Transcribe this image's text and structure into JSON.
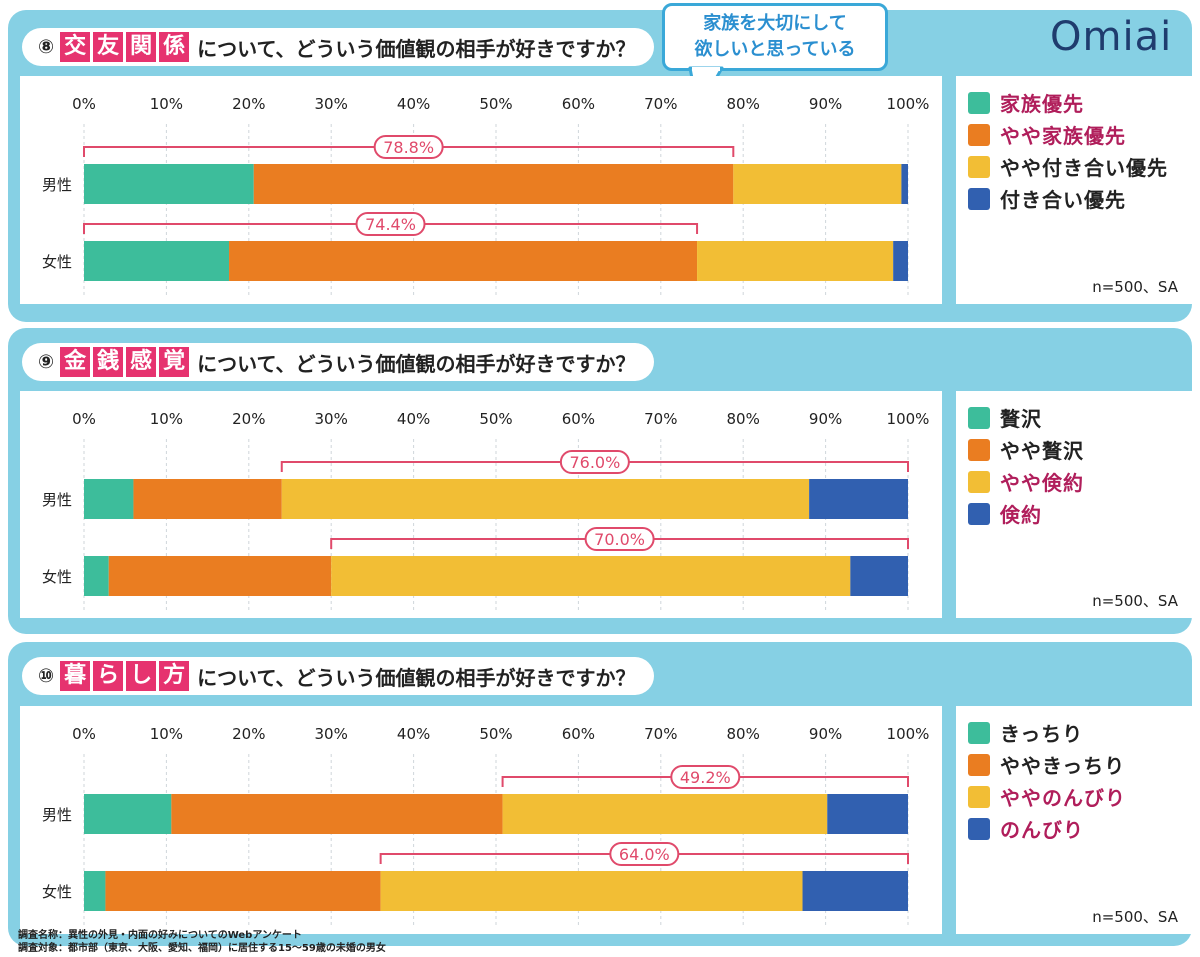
{
  "callout": {
    "line1": "家族を大切にして",
    "line2": "欲しいと思っている"
  },
  "logo": "Omiai",
  "footer": {
    "line1": "調査名称：異性の外見・内面の好みについてのWebアンケート",
    "line2": "調査対象：都市部（東京、大阪、愛知、福岡）に居住する15〜59歳の未婚の男女"
  },
  "colors": {
    "green": "#3dbd9b",
    "orange": "#ea7d21",
    "yellow": "#f2be35",
    "blue": "#3160b0",
    "pink": "#e6336f",
    "bracket": "#e04a6b"
  },
  "sections": [
    {
      "num": "⑧",
      "keyword": [
        "交",
        "友",
        "関",
        "係"
      ],
      "question": "について、どういう価値観の相手が好きですか？",
      "legend": [
        {
          "label": "家族優先",
          "color": "#3dbd9b",
          "text_color": "#b01e5b"
        },
        {
          "label": "やや家族優先",
          "color": "#ea7d21",
          "text_color": "#b01e5b"
        },
        {
          "label": "やや付き合い優先",
          "color": "#f2be35",
          "text_color": "#222222"
        },
        {
          "label": "付き合い優先",
          "color": "#3160b0",
          "text_color": "#222222"
        }
      ],
      "n_label": "n=500、SA",
      "chart_data": {
        "type": "bar",
        "orientation": "horizontal-stacked",
        "categories": [
          "男性",
          "女性"
        ],
        "x_ticks": [
          "0%",
          "10%",
          "20%",
          "30%",
          "40%",
          "50%",
          "60%",
          "70%",
          "80%",
          "90%",
          "100%"
        ],
        "xlim": [
          0,
          100
        ],
        "series": [
          {
            "name": "家族優先",
            "values": [
              20.6,
              17.6
            ]
          },
          {
            "name": "やや家族優先",
            "values": [
              58.2,
              56.8
            ]
          },
          {
            "name": "やや付き合い優先",
            "values": [
              20.4,
              23.8
            ]
          },
          {
            "name": "付き合い優先",
            "values": [
              0.8,
              1.8
            ]
          }
        ],
        "brackets": [
          {
            "row": 0,
            "from": 0,
            "to": 78.8,
            "label": "78.8%"
          },
          {
            "row": 1,
            "from": 0,
            "to": 74.4,
            "label": "74.4%"
          }
        ]
      }
    },
    {
      "num": "⑨",
      "keyword": [
        "金",
        "銭",
        "感",
        "覚"
      ],
      "question": "について、どういう価値観の相手が好きですか？",
      "legend": [
        {
          "label": "贅沢",
          "color": "#3dbd9b",
          "text_color": "#222222"
        },
        {
          "label": "やや贅沢",
          "color": "#ea7d21",
          "text_color": "#222222"
        },
        {
          "label": "やや倹約",
          "color": "#f2be35",
          "text_color": "#b01e5b"
        },
        {
          "label": "倹約",
          "color": "#3160b0",
          "text_color": "#b01e5b"
        }
      ],
      "n_label": "n=500、SA",
      "chart_data": {
        "type": "bar",
        "orientation": "horizontal-stacked",
        "categories": [
          "男性",
          "女性"
        ],
        "x_ticks": [
          "0%",
          "10%",
          "20%",
          "30%",
          "40%",
          "50%",
          "60%",
          "70%",
          "80%",
          "90%",
          "100%"
        ],
        "xlim": [
          0,
          100
        ],
        "series": [
          {
            "name": "贅沢",
            "values": [
              6.0,
              3.0
            ]
          },
          {
            "name": "やや贅沢",
            "values": [
              18.0,
              27.0
            ]
          },
          {
            "name": "やや倹約",
            "values": [
              64.0,
              63.0
            ]
          },
          {
            "name": "倹約",
            "values": [
              12.0,
              7.0
            ]
          }
        ],
        "brackets": [
          {
            "row": 0,
            "from": 24.0,
            "to": 100,
            "label": "76.0%"
          },
          {
            "row": 1,
            "from": 30.0,
            "to": 100,
            "label": "70.0%"
          }
        ]
      }
    },
    {
      "num": "⑩",
      "keyword": [
        "暮",
        "ら",
        "し",
        "方"
      ],
      "question": "について、どういう価値観の相手が好きですか？",
      "legend": [
        {
          "label": "きっちり",
          "color": "#3dbd9b",
          "text_color": "#222222"
        },
        {
          "label": "ややきっちり",
          "color": "#ea7d21",
          "text_color": "#222222"
        },
        {
          "label": "ややのんびり",
          "color": "#f2be35",
          "text_color": "#b01e5b"
        },
        {
          "label": "のんびり",
          "color": "#3160b0",
          "text_color": "#b01e5b"
        }
      ],
      "n_label": "n=500、SA",
      "chart_data": {
        "type": "bar",
        "orientation": "horizontal-stacked",
        "categories": [
          "男性",
          "女性"
        ],
        "x_ticks": [
          "0%",
          "10%",
          "20%",
          "30%",
          "40%",
          "50%",
          "60%",
          "70%",
          "80%",
          "90%",
          "100%"
        ],
        "xlim": [
          0,
          100
        ],
        "series": [
          {
            "name": "きっちり",
            "values": [
              10.6,
              2.6
            ]
          },
          {
            "name": "ややきっちり",
            "values": [
              40.2,
              33.4
            ]
          },
          {
            "name": "ややのんびり",
            "values": [
              39.4,
              51.2
            ]
          },
          {
            "name": "のんびり",
            "values": [
              9.8,
              12.8
            ]
          }
        ],
        "brackets": [
          {
            "row": 0,
            "from": 50.8,
            "to": 100,
            "label": "49.2%"
          },
          {
            "row": 1,
            "from": 36.0,
            "to": 100,
            "label": "64.0%"
          }
        ]
      }
    }
  ]
}
